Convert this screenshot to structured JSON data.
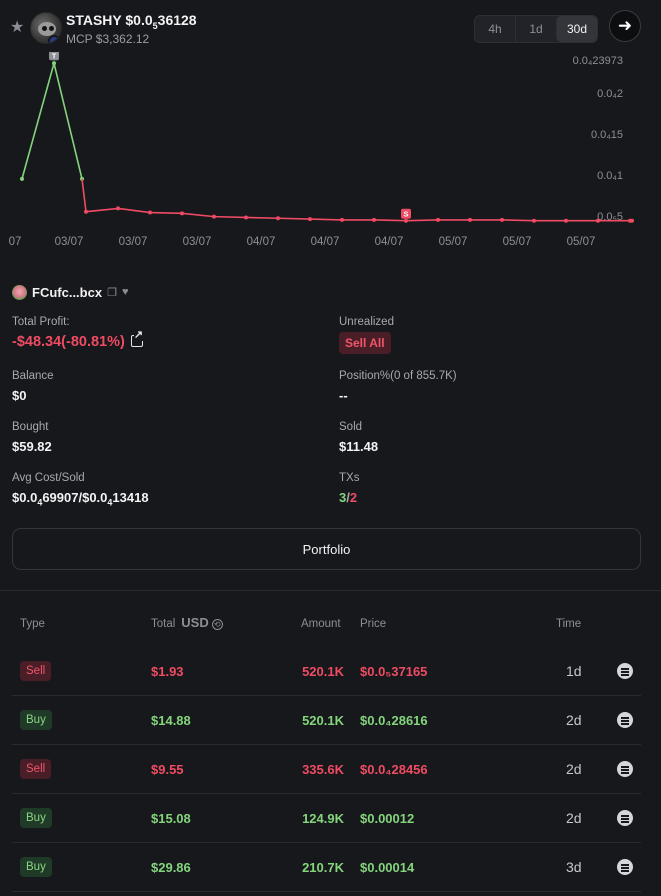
{
  "header": {
    "favorite_icon": "star-icon",
    "token_name": "STASHY $0.0",
    "token_price_sub": "5",
    "token_price_rest": "36128",
    "mcp": "MCP $3,362.12",
    "timeframes": [
      "4h",
      "1d",
      "30d"
    ],
    "active_timeframe": "30d",
    "go_icon": "arrow-right-icon"
  },
  "chart_data": {
    "type": "line",
    "x_tick_labels": [
      "07",
      "03/07",
      "03/07",
      "03/07",
      "04/07",
      "04/07",
      "04/07",
      "05/07",
      "05/07",
      "05/07"
    ],
    "y_tick_labels": [
      "0.0₄23973",
      "0.0₄2",
      "0.0₄15",
      "0.0₄1",
      "0.0₅5"
    ],
    "y_tick_values": [
      0.00023973,
      0.0002,
      0.00015,
      0.0001,
      5e-05
    ],
    "ylim": [
      4e-05,
      0.00024
    ],
    "series": [
      {
        "color": "#84d47c",
        "values": [
          9.5e-05,
          0.000236,
          9.5e-05
        ]
      },
      {
        "color": "#ef4b63",
        "values": [
          9.5e-05,
          5.5e-05,
          5.9e-05,
          5.4e-05,
          5.3e-05,
          4.9e-05,
          4.8e-05,
          4.7e-05,
          4.6e-05,
          4.5e-05,
          4.5e-05,
          4.4e-05,
          4.5e-05,
          4.5e-05,
          4.5e-05,
          4.4e-05,
          4.4e-05,
          4.4e-05,
          4.4e-05,
          4.4e-05
        ]
      }
    ],
    "markers": [
      {
        "label": "T",
        "color": "#8d8f96"
      },
      {
        "label": "S",
        "color": "#ef4b63"
      }
    ],
    "grid": false,
    "legend": "none"
  },
  "wallet": {
    "address": "FCufc...bcx",
    "copy_icon": "copy-icon",
    "heart_icon": "heart-icon"
  },
  "stats": {
    "total_profit_label": "Total Profit:",
    "total_profit_value": "-$48.34(-80.81%)",
    "unrealized_label": "Unrealized",
    "sell_all_label": "Sell All",
    "balance_label": "Balance",
    "balance_value": "$0",
    "position_label": "Position%(0 of 855.7K)",
    "position_value": "--",
    "bought_label": "Bought",
    "bought_value": "$59.82",
    "sold_label": "Sold",
    "sold_value": "$11.48",
    "avg_label": "Avg Cost/Sold",
    "avg_value_a": "$0.0",
    "avg_value_a_sub": "4",
    "avg_value_a_rest": "69907/$0.0",
    "avg_value_b_sub": "4",
    "avg_value_b_rest": "13418",
    "txs_label": "TXs",
    "txs_buys": "3",
    "txs_sep": "/",
    "txs_sells": "2"
  },
  "portfolio_label": "Portfolio",
  "table": {
    "headers": {
      "type": "Type",
      "total": "Total",
      "usd": "USD",
      "amount": "Amount",
      "price": "Price",
      "time": "Time"
    },
    "rows": [
      {
        "type": "Sell",
        "total": "$1.93",
        "amount": "520.1K",
        "price": "$0.0₅37165",
        "time": "1d"
      },
      {
        "type": "Buy",
        "total": "$14.88",
        "amount": "520.1K",
        "price": "$0.0₄28616",
        "time": "2d"
      },
      {
        "type": "Sell",
        "total": "$9.55",
        "amount": "335.6K",
        "price": "$0.0₄28456",
        "time": "2d"
      },
      {
        "type": "Buy",
        "total": "$15.08",
        "amount": "124.9K",
        "price": "$0.00012",
        "time": "2d"
      },
      {
        "type": "Buy",
        "total": "$29.86",
        "amount": "210.7K",
        "price": "$0.00014",
        "time": "3d"
      }
    ]
  }
}
